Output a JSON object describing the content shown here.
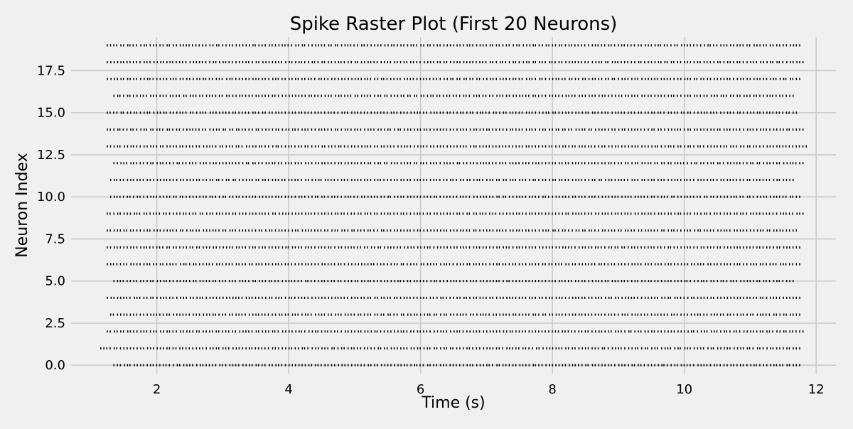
{
  "chart_data": {
    "type": "scatter",
    "title": "Spike Raster Plot (First 20 Neurons)",
    "xlabel": "Time (s)",
    "ylabel": "Neuron Index",
    "xlim": [
      0.7,
      12.3
    ],
    "ylim": [
      -0.5,
      19.5
    ],
    "xticks": [
      2,
      4,
      6,
      8,
      10,
      12
    ],
    "xtick_labels": [
      "2",
      "4",
      "6",
      "8",
      "10",
      "12"
    ],
    "yticks": [
      0,
      2.5,
      5,
      7.5,
      10,
      12.5,
      15,
      17.5
    ],
    "ytick_labels": [
      "0.0",
      "2.5",
      "5.0",
      "7.5",
      "10.0",
      "12.5",
      "15.0",
      "17.5"
    ],
    "grid": true,
    "marker": "|",
    "colors": {
      "background": "#f0f0f0",
      "grid": "#cbcbcb",
      "spike": "#000000"
    },
    "series": [
      {
        "neuron": 0,
        "onset": 1.35,
        "offset": 11.75,
        "interval": 0.05
      },
      {
        "neuron": 1,
        "onset": 1.15,
        "offset": 11.75,
        "interval": 0.05
      },
      {
        "neuron": 2,
        "onset": 1.25,
        "offset": 11.8,
        "interval": 0.05
      },
      {
        "neuron": 3,
        "onset": 1.3,
        "offset": 11.75,
        "interval": 0.05
      },
      {
        "neuron": 4,
        "onset": 1.25,
        "offset": 11.75,
        "interval": 0.05
      },
      {
        "neuron": 5,
        "onset": 1.35,
        "offset": 11.65,
        "interval": 0.05
      },
      {
        "neuron": 6,
        "onset": 1.25,
        "offset": 11.75,
        "interval": 0.05
      },
      {
        "neuron": 7,
        "onset": 1.25,
        "offset": 11.75,
        "interval": 0.05
      },
      {
        "neuron": 8,
        "onset": 1.25,
        "offset": 11.7,
        "interval": 0.05
      },
      {
        "neuron": 9,
        "onset": 1.25,
        "offset": 11.8,
        "interval": 0.05
      },
      {
        "neuron": 10,
        "onset": 1.3,
        "offset": 11.75,
        "interval": 0.05
      },
      {
        "neuron": 11,
        "onset": 1.3,
        "offset": 11.65,
        "interval": 0.05
      },
      {
        "neuron": 12,
        "onset": 1.35,
        "offset": 11.8,
        "interval": 0.05
      },
      {
        "neuron": 13,
        "onset": 1.25,
        "offset": 11.85,
        "interval": 0.05
      },
      {
        "neuron": 14,
        "onset": 1.25,
        "offset": 11.8,
        "interval": 0.05
      },
      {
        "neuron": 15,
        "onset": 1.25,
        "offset": 11.7,
        "interval": 0.05
      },
      {
        "neuron": 16,
        "onset": 1.35,
        "offset": 11.65,
        "interval": 0.05
      },
      {
        "neuron": 17,
        "onset": 1.25,
        "offset": 11.75,
        "interval": 0.05
      },
      {
        "neuron": 18,
        "onset": 1.25,
        "offset": 11.8,
        "interval": 0.05
      },
      {
        "neuron": 19,
        "onset": 1.25,
        "offset": 11.75,
        "interval": 0.05
      }
    ]
  }
}
